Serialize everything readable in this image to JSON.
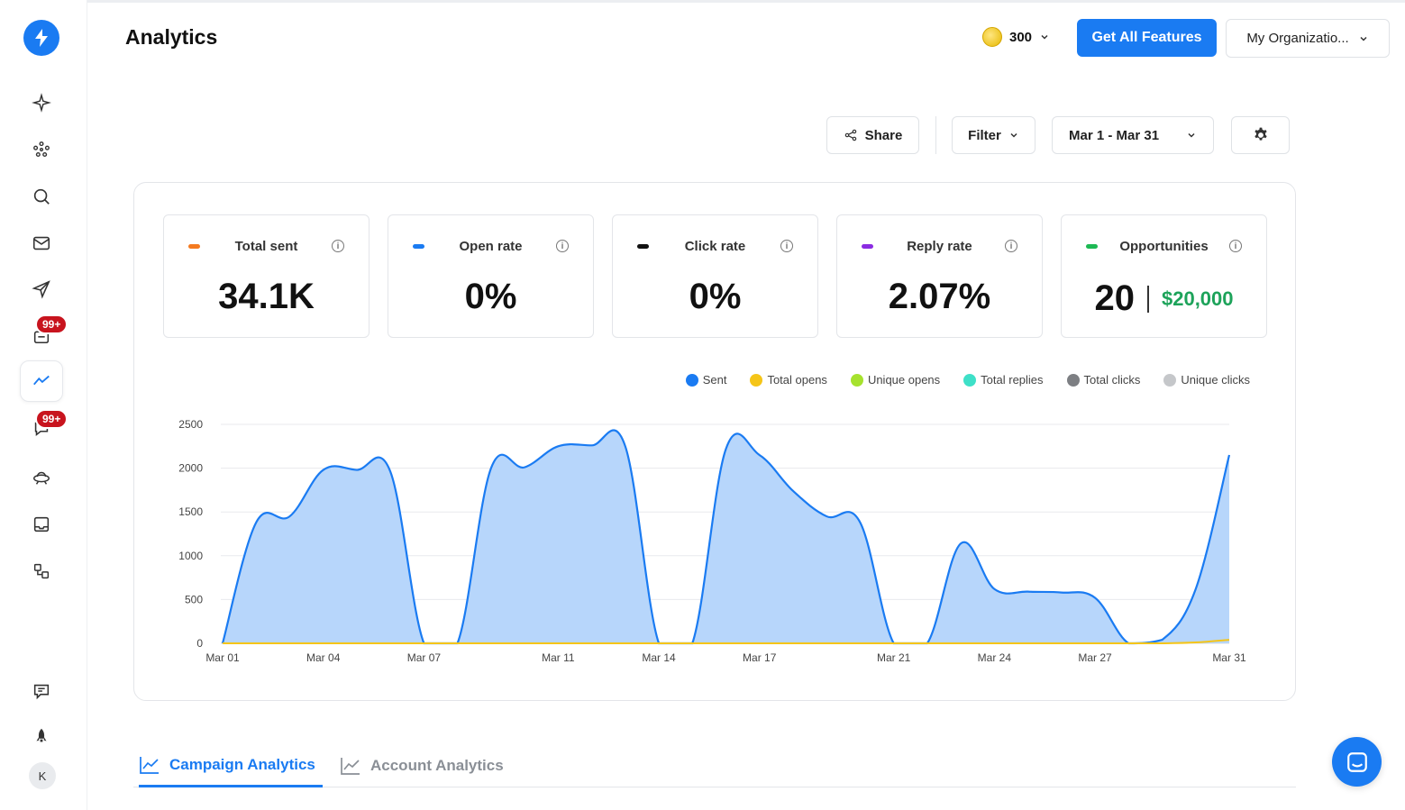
{
  "header": {
    "title": "Analytics",
    "credits": "300",
    "cta_label": "Get All Features",
    "org_label": "My Organizatio..."
  },
  "sidebar": {
    "badges": [
      "99+",
      "99+"
    ],
    "avatar_initial": "K"
  },
  "toolbar": {
    "share_label": "Share",
    "filter_label": "Filter",
    "date_range": "Mar 1 - Mar 31"
  },
  "stats": [
    {
      "label": "Total sent",
      "value": "34.1K",
      "color": "#f47a20"
    },
    {
      "label": "Open rate",
      "value": "0%",
      "color": "#1a7bf2"
    },
    {
      "label": "Click rate",
      "value": "0%",
      "color": "#111111"
    },
    {
      "label": "Reply rate",
      "value": "2.07%",
      "color": "#8b2be2"
    },
    {
      "label": "Opportunities",
      "value": "20",
      "amount": "$20,000",
      "color": "#1db954"
    }
  ],
  "chart_data": {
    "type": "area",
    "legend": [
      {
        "name": "Sent",
        "color": "#1a7bf2"
      },
      {
        "name": "Total opens",
        "color": "#f5c518"
      },
      {
        "name": "Unique opens",
        "color": "#a6e22e"
      },
      {
        "name": "Total replies",
        "color": "#3ee0c8"
      },
      {
        "name": "Total clicks",
        "color": "#7d7f83"
      },
      {
        "name": "Unique clicks",
        "color": "#c5c7ca"
      }
    ],
    "y_ticks": [
      0,
      500,
      1000,
      1500,
      2000,
      2500
    ],
    "ylim": [
      0,
      2500
    ],
    "x_labels": [
      "Mar 01",
      "Mar 04",
      "Mar 07",
      "Mar 11",
      "Mar 14",
      "Mar 17",
      "Mar 21",
      "Mar 24",
      "Mar 27",
      "Mar 31"
    ],
    "x_label_positions": [
      1,
      4,
      7,
      11,
      14,
      17,
      21,
      24,
      27,
      31
    ],
    "days": [
      1,
      2,
      3,
      4,
      5,
      6,
      7,
      8,
      9,
      10,
      11,
      12,
      13,
      14,
      15,
      16,
      17,
      18,
      19,
      20,
      21,
      22,
      23,
      24,
      25,
      26,
      27,
      28,
      29,
      30,
      31
    ],
    "series": [
      {
        "name": "Sent",
        "values": [
          0,
          1380,
          1450,
          1980,
          1980,
          1960,
          0,
          0,
          2000,
          2010,
          2250,
          2260,
          2250,
          0,
          0,
          2220,
          2150,
          1740,
          1450,
          1380,
          0,
          0,
          1140,
          620,
          590,
          580,
          520,
          0,
          40,
          620,
          2150
        ]
      },
      {
        "name": "Total replies",
        "values": [
          0,
          0,
          0,
          0,
          0,
          0,
          0,
          0,
          0,
          0,
          0,
          0,
          0,
          0,
          0,
          0,
          0,
          0,
          0,
          0,
          0,
          0,
          0,
          0,
          0,
          0,
          0,
          0,
          0,
          10,
          40
        ]
      }
    ]
  },
  "tabs": [
    {
      "label": "Campaign Analytics"
    },
    {
      "label": "Account Analytics"
    }
  ]
}
